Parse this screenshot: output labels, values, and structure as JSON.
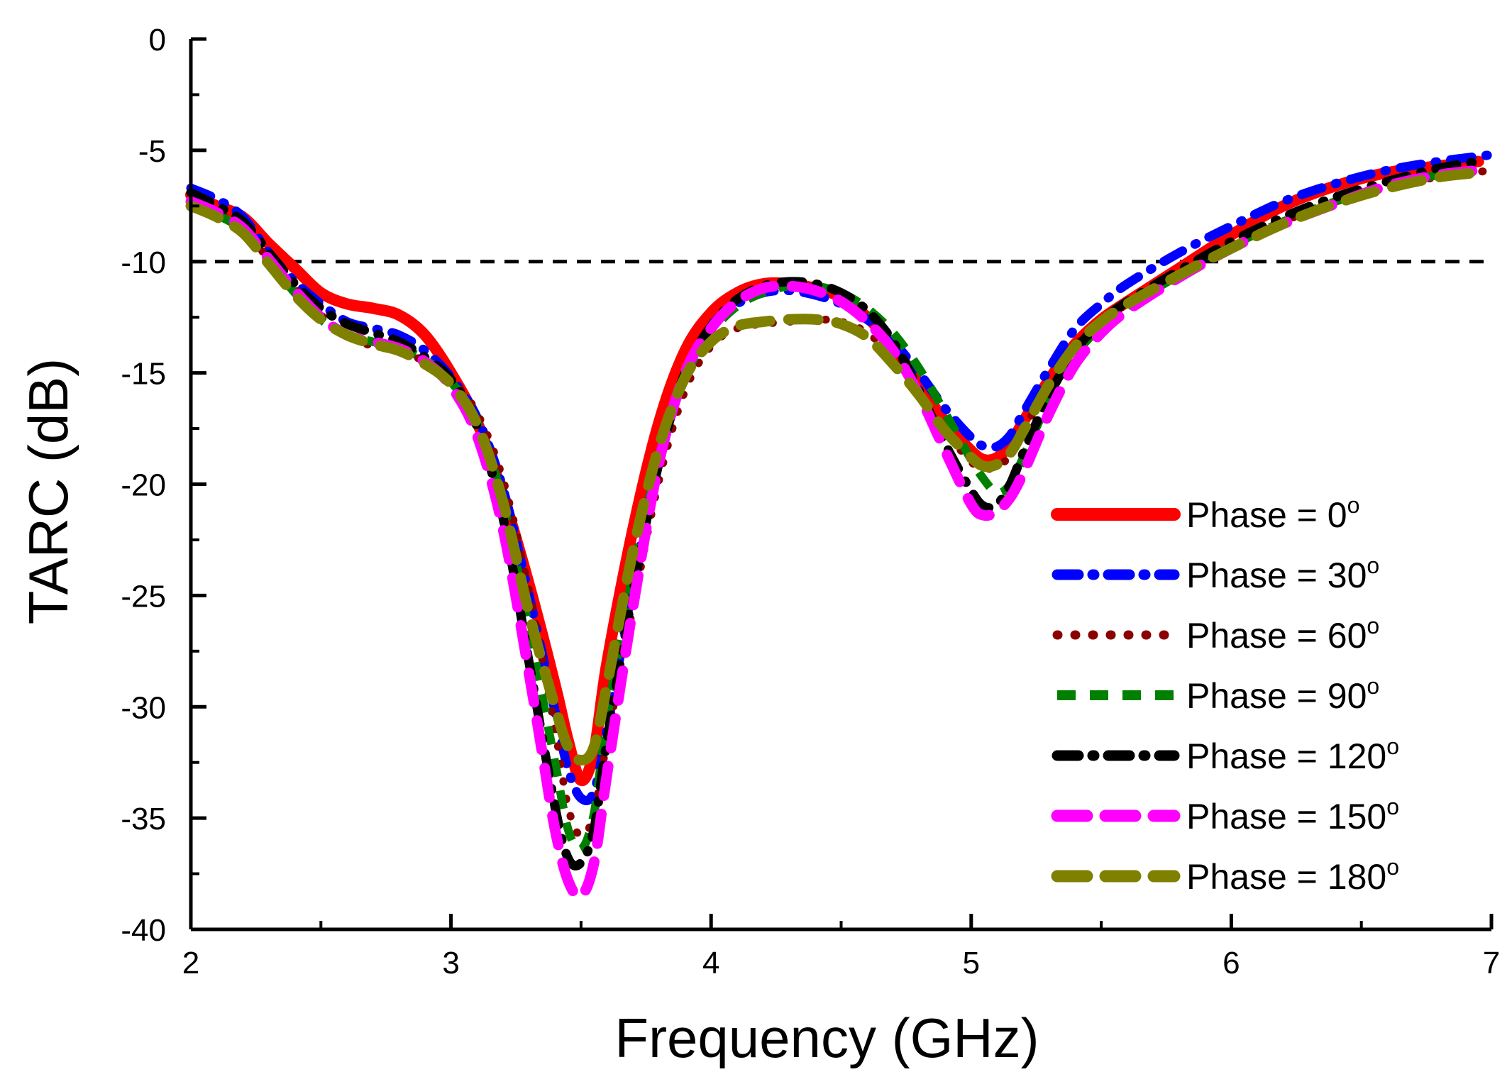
{
  "chart_data": {
    "type": "line",
    "title": "",
    "xlabel": "Frequency (GHz)",
    "ylabel": "TARC (dB)",
    "xlim": [
      2,
      7
    ],
    "ylim": [
      -40,
      0
    ],
    "xticks": [
      2,
      3,
      4,
      5,
      6,
      7
    ],
    "yticks": [
      0,
      -5,
      -10,
      -15,
      -20,
      -25,
      -30,
      -35,
      -40
    ],
    "xtick_labels": [
      "2",
      "3",
      "4",
      "5",
      "6",
      "7"
    ],
    "ytick_labels": [
      "0",
      "-5",
      "-10",
      "-15",
      "-20",
      "-25",
      "-30",
      "-35",
      "-40"
    ],
    "reference_line": {
      "y": -10,
      "style": "dashed",
      "color": "#000000"
    },
    "legend_position": "lower-right",
    "series": [
      {
        "name": "Phase = 0",
        "degree_suffix": "o",
        "color": "#ff0000",
        "style": "solid",
        "x": [
          2.0,
          2.1,
          2.2,
          2.3,
          2.4,
          2.5,
          2.6,
          2.7,
          2.8,
          2.9,
          3.0,
          3.1,
          3.2,
          3.3,
          3.4,
          3.45,
          3.5,
          3.55,
          3.6,
          3.7,
          3.8,
          3.9,
          4.0,
          4.1,
          4.2,
          4.3,
          4.4,
          4.5,
          4.6,
          4.7,
          4.8,
          4.9,
          5.0,
          5.05,
          5.1,
          5.15,
          5.2,
          5.3,
          5.4,
          5.5,
          5.6,
          5.8,
          6.0,
          6.2,
          6.4,
          6.6,
          6.8,
          6.95
        ],
        "y": [
          -7.0,
          -7.5,
          -8.0,
          -9.2,
          -10.3,
          -11.4,
          -11.9,
          -12.1,
          -12.4,
          -13.3,
          -15.0,
          -17.2,
          -20.5,
          -24.5,
          -29.0,
          -31.5,
          -33.3,
          -32.0,
          -28.0,
          -22.0,
          -17.2,
          -14.0,
          -12.3,
          -11.4,
          -11.0,
          -11.0,
          -11.2,
          -11.6,
          -12.5,
          -13.8,
          -15.5,
          -17.2,
          -18.5,
          -18.9,
          -18.8,
          -18.2,
          -17.2,
          -15.3,
          -13.7,
          -12.6,
          -11.8,
          -10.3,
          -8.8,
          -7.5,
          -6.6,
          -6.0,
          -5.7,
          -5.5
        ]
      },
      {
        "name": "Phase = 30",
        "degree_suffix": "o",
        "color": "#0000ff",
        "style": "dash-dot",
        "x": [
          2.0,
          2.1,
          2.2,
          2.3,
          2.4,
          2.5,
          2.6,
          2.7,
          2.8,
          2.9,
          3.0,
          3.1,
          3.2,
          3.3,
          3.4,
          3.45,
          3.5,
          3.55,
          3.6,
          3.7,
          3.8,
          3.9,
          4.0,
          4.1,
          4.2,
          4.3,
          4.4,
          4.5,
          4.6,
          4.7,
          4.8,
          4.9,
          5.0,
          5.05,
          5.1,
          5.15,
          5.2,
          5.3,
          5.4,
          5.5,
          5.6,
          5.8,
          6.0,
          6.2,
          6.4,
          6.6,
          6.8,
          7.0
        ],
        "y": [
          -6.7,
          -7.2,
          -8.0,
          -9.6,
          -10.9,
          -11.9,
          -12.7,
          -13.0,
          -13.3,
          -14.0,
          -15.2,
          -17.0,
          -20.2,
          -25.0,
          -30.2,
          -32.8,
          -34.1,
          -33.8,
          -31.0,
          -24.5,
          -18.8,
          -15.0,
          -12.9,
          -11.9,
          -11.4,
          -11.3,
          -11.5,
          -11.9,
          -12.6,
          -13.6,
          -15.0,
          -16.6,
          -17.9,
          -18.3,
          -18.3,
          -17.8,
          -16.8,
          -14.8,
          -13.0,
          -11.9,
          -11.0,
          -9.6,
          -8.4,
          -7.3,
          -6.5,
          -5.9,
          -5.5,
          -5.2
        ]
      },
      {
        "name": "Phase = 60",
        "degree_suffix": "o",
        "color": "#8b0000",
        "style": "dotted",
        "x": [
          2.0,
          2.1,
          2.2,
          2.3,
          2.4,
          2.5,
          2.6,
          2.7,
          2.8,
          2.9,
          3.0,
          3.1,
          3.2,
          3.3,
          3.4,
          3.45,
          3.5,
          3.55,
          3.6,
          3.7,
          3.8,
          3.9,
          4.0,
          4.1,
          4.2,
          4.3,
          4.4,
          4.5,
          4.6,
          4.7,
          4.8,
          4.9,
          5.0,
          5.05,
          5.1,
          5.15,
          5.2,
          5.3,
          5.4,
          5.5,
          5.6,
          5.8,
          6.0,
          6.2,
          6.4,
          6.6,
          6.8,
          7.0
        ],
        "y": [
          -7.3,
          -7.8,
          -8.5,
          -9.9,
          -11.2,
          -12.4,
          -13.3,
          -13.8,
          -14.0,
          -14.5,
          -15.3,
          -16.8,
          -19.8,
          -24.8,
          -31.0,
          -34.5,
          -35.8,
          -34.8,
          -31.5,
          -25.5,
          -19.8,
          -15.8,
          -13.8,
          -13.0,
          -12.8,
          -12.7,
          -12.6,
          -12.7,
          -13.2,
          -14.3,
          -15.9,
          -17.6,
          -19.0,
          -19.3,
          -19.2,
          -18.7,
          -17.6,
          -15.5,
          -13.8,
          -12.7,
          -11.9,
          -10.6,
          -9.3,
          -8.2,
          -7.3,
          -6.6,
          -6.2,
          -5.9
        ]
      },
      {
        "name": "Phase = 90",
        "degree_suffix": "o",
        "color": "#008000",
        "style": "dashed",
        "x": [
          2.0,
          2.1,
          2.2,
          2.3,
          2.4,
          2.5,
          2.6,
          2.7,
          2.8,
          2.9,
          3.0,
          3.1,
          3.2,
          3.3,
          3.4,
          3.45,
          3.5,
          3.55,
          3.6,
          3.7,
          3.8,
          3.9,
          4.0,
          4.1,
          4.2,
          4.3,
          4.4,
          4.5,
          4.6,
          4.7,
          4.8,
          4.9,
          5.0,
          5.05,
          5.1,
          5.15,
          5.2,
          5.3,
          5.4,
          5.5,
          5.6,
          5.8,
          6.0,
          6.2,
          6.4,
          6.6,
          6.8,
          6.95
        ],
        "y": [
          -7.4,
          -7.9,
          -8.6,
          -10.0,
          -11.4,
          -12.6,
          -13.3,
          -13.6,
          -13.9,
          -14.4,
          -15.4,
          -17.2,
          -20.8,
          -26.5,
          -32.5,
          -35.5,
          -36.4,
          -34.8,
          -30.5,
          -24.0,
          -18.8,
          -15.2,
          -13.2,
          -12.0,
          -11.4,
          -11.1,
          -11.1,
          -11.4,
          -12.1,
          -13.2,
          -14.8,
          -16.8,
          -18.9,
          -19.8,
          -20.4,
          -20.0,
          -18.8,
          -16.2,
          -14.2,
          -12.9,
          -12.0,
          -10.6,
          -9.3,
          -8.2,
          -7.3,
          -6.6,
          -6.1,
          -5.9
        ]
      },
      {
        "name": "Phase = 120",
        "degree_suffix": "o",
        "color": "#000000",
        "style": "dash-dot",
        "x": [
          2.0,
          2.1,
          2.2,
          2.3,
          2.4,
          2.5,
          2.6,
          2.7,
          2.8,
          2.9,
          3.0,
          3.1,
          3.2,
          3.3,
          3.4,
          3.45,
          3.5,
          3.55,
          3.6,
          3.7,
          3.8,
          3.9,
          4.0,
          4.1,
          4.2,
          4.3,
          4.4,
          4.5,
          4.6,
          4.7,
          4.8,
          4.9,
          5.0,
          5.05,
          5.1,
          5.15,
          5.2,
          5.3,
          5.4,
          5.5,
          5.6,
          5.8,
          6.0,
          6.2,
          6.4,
          6.6,
          6.8,
          6.95
        ],
        "y": [
          -6.9,
          -7.5,
          -8.2,
          -9.6,
          -11.0,
          -12.1,
          -12.8,
          -13.2,
          -13.6,
          -14.3,
          -15.3,
          -17.4,
          -21.5,
          -28.0,
          -34.5,
          -36.8,
          -37.0,
          -35.5,
          -31.5,
          -24.8,
          -19.0,
          -15.0,
          -12.9,
          -11.7,
          -11.1,
          -10.9,
          -11.0,
          -11.4,
          -12.2,
          -13.6,
          -15.8,
          -18.2,
          -20.3,
          -21.0,
          -20.9,
          -20.0,
          -18.6,
          -16.0,
          -14.0,
          -12.7,
          -11.8,
          -10.4,
          -9.1,
          -8.0,
          -7.1,
          -6.4,
          -5.8,
          -5.5
        ]
      },
      {
        "name": "Phase = 150",
        "degree_suffix": "o",
        "color": "#ff00ff",
        "style": "long-dash",
        "x": [
          2.0,
          2.1,
          2.2,
          2.3,
          2.4,
          2.5,
          2.6,
          2.7,
          2.8,
          2.9,
          3.0,
          3.1,
          3.2,
          3.3,
          3.35,
          3.4,
          3.45,
          3.5,
          3.55,
          3.6,
          3.7,
          3.8,
          3.9,
          4.0,
          4.1,
          4.2,
          4.3,
          4.4,
          4.5,
          4.6,
          4.7,
          4.8,
          4.9,
          5.0,
          5.05,
          5.1,
          5.15,
          5.2,
          5.3,
          5.4,
          5.5,
          5.6,
          5.8,
          6.0,
          6.2,
          6.4,
          6.6,
          6.8,
          6.95
        ],
        "y": [
          -7.3,
          -7.8,
          -8.5,
          -9.9,
          -11.3,
          -12.5,
          -13.3,
          -13.6,
          -13.9,
          -14.5,
          -15.6,
          -17.8,
          -22.0,
          -28.5,
          -32.0,
          -35.5,
          -37.8,
          -38.5,
          -37.0,
          -33.0,
          -25.5,
          -19.0,
          -15.0,
          -13.0,
          -11.8,
          -11.2,
          -11.1,
          -11.3,
          -11.8,
          -12.7,
          -14.0,
          -16.0,
          -18.5,
          -20.9,
          -21.4,
          -21.2,
          -20.6,
          -19.5,
          -16.8,
          -14.6,
          -13.2,
          -12.2,
          -10.7,
          -9.4,
          -8.3,
          -7.4,
          -6.6,
          -6.1,
          -5.9
        ]
      },
      {
        "name": "Phase = 180",
        "degree_suffix": "o",
        "color": "#808000",
        "style": "long-dash",
        "x": [
          2.0,
          2.1,
          2.2,
          2.3,
          2.4,
          2.5,
          2.6,
          2.7,
          2.8,
          2.9,
          3.0,
          3.1,
          3.2,
          3.3,
          3.4,
          3.45,
          3.5,
          3.55,
          3.6,
          3.7,
          3.8,
          3.9,
          4.0,
          4.1,
          4.2,
          4.3,
          4.4,
          4.5,
          4.6,
          4.7,
          4.8,
          4.9,
          5.0,
          5.05,
          5.1,
          5.15,
          5.2,
          5.3,
          5.4,
          5.5,
          5.6,
          5.8,
          6.0,
          6.2,
          6.4,
          6.6,
          6.8,
          6.95
        ],
        "y": [
          -7.5,
          -8.0,
          -8.7,
          -10.1,
          -11.5,
          -12.6,
          -13.3,
          -13.7,
          -14.0,
          -14.6,
          -15.5,
          -17.3,
          -20.8,
          -25.8,
          -30.0,
          -31.8,
          -32.4,
          -31.8,
          -29.0,
          -23.0,
          -18.3,
          -15.2,
          -13.6,
          -12.9,
          -12.7,
          -12.6,
          -12.6,
          -12.8,
          -13.4,
          -14.6,
          -16.0,
          -17.6,
          -18.8,
          -19.2,
          -19.1,
          -18.6,
          -17.6,
          -15.5,
          -13.8,
          -12.7,
          -11.9,
          -10.6,
          -9.4,
          -8.3,
          -7.4,
          -6.7,
          -6.2,
          -6.0
        ]
      }
    ]
  }
}
